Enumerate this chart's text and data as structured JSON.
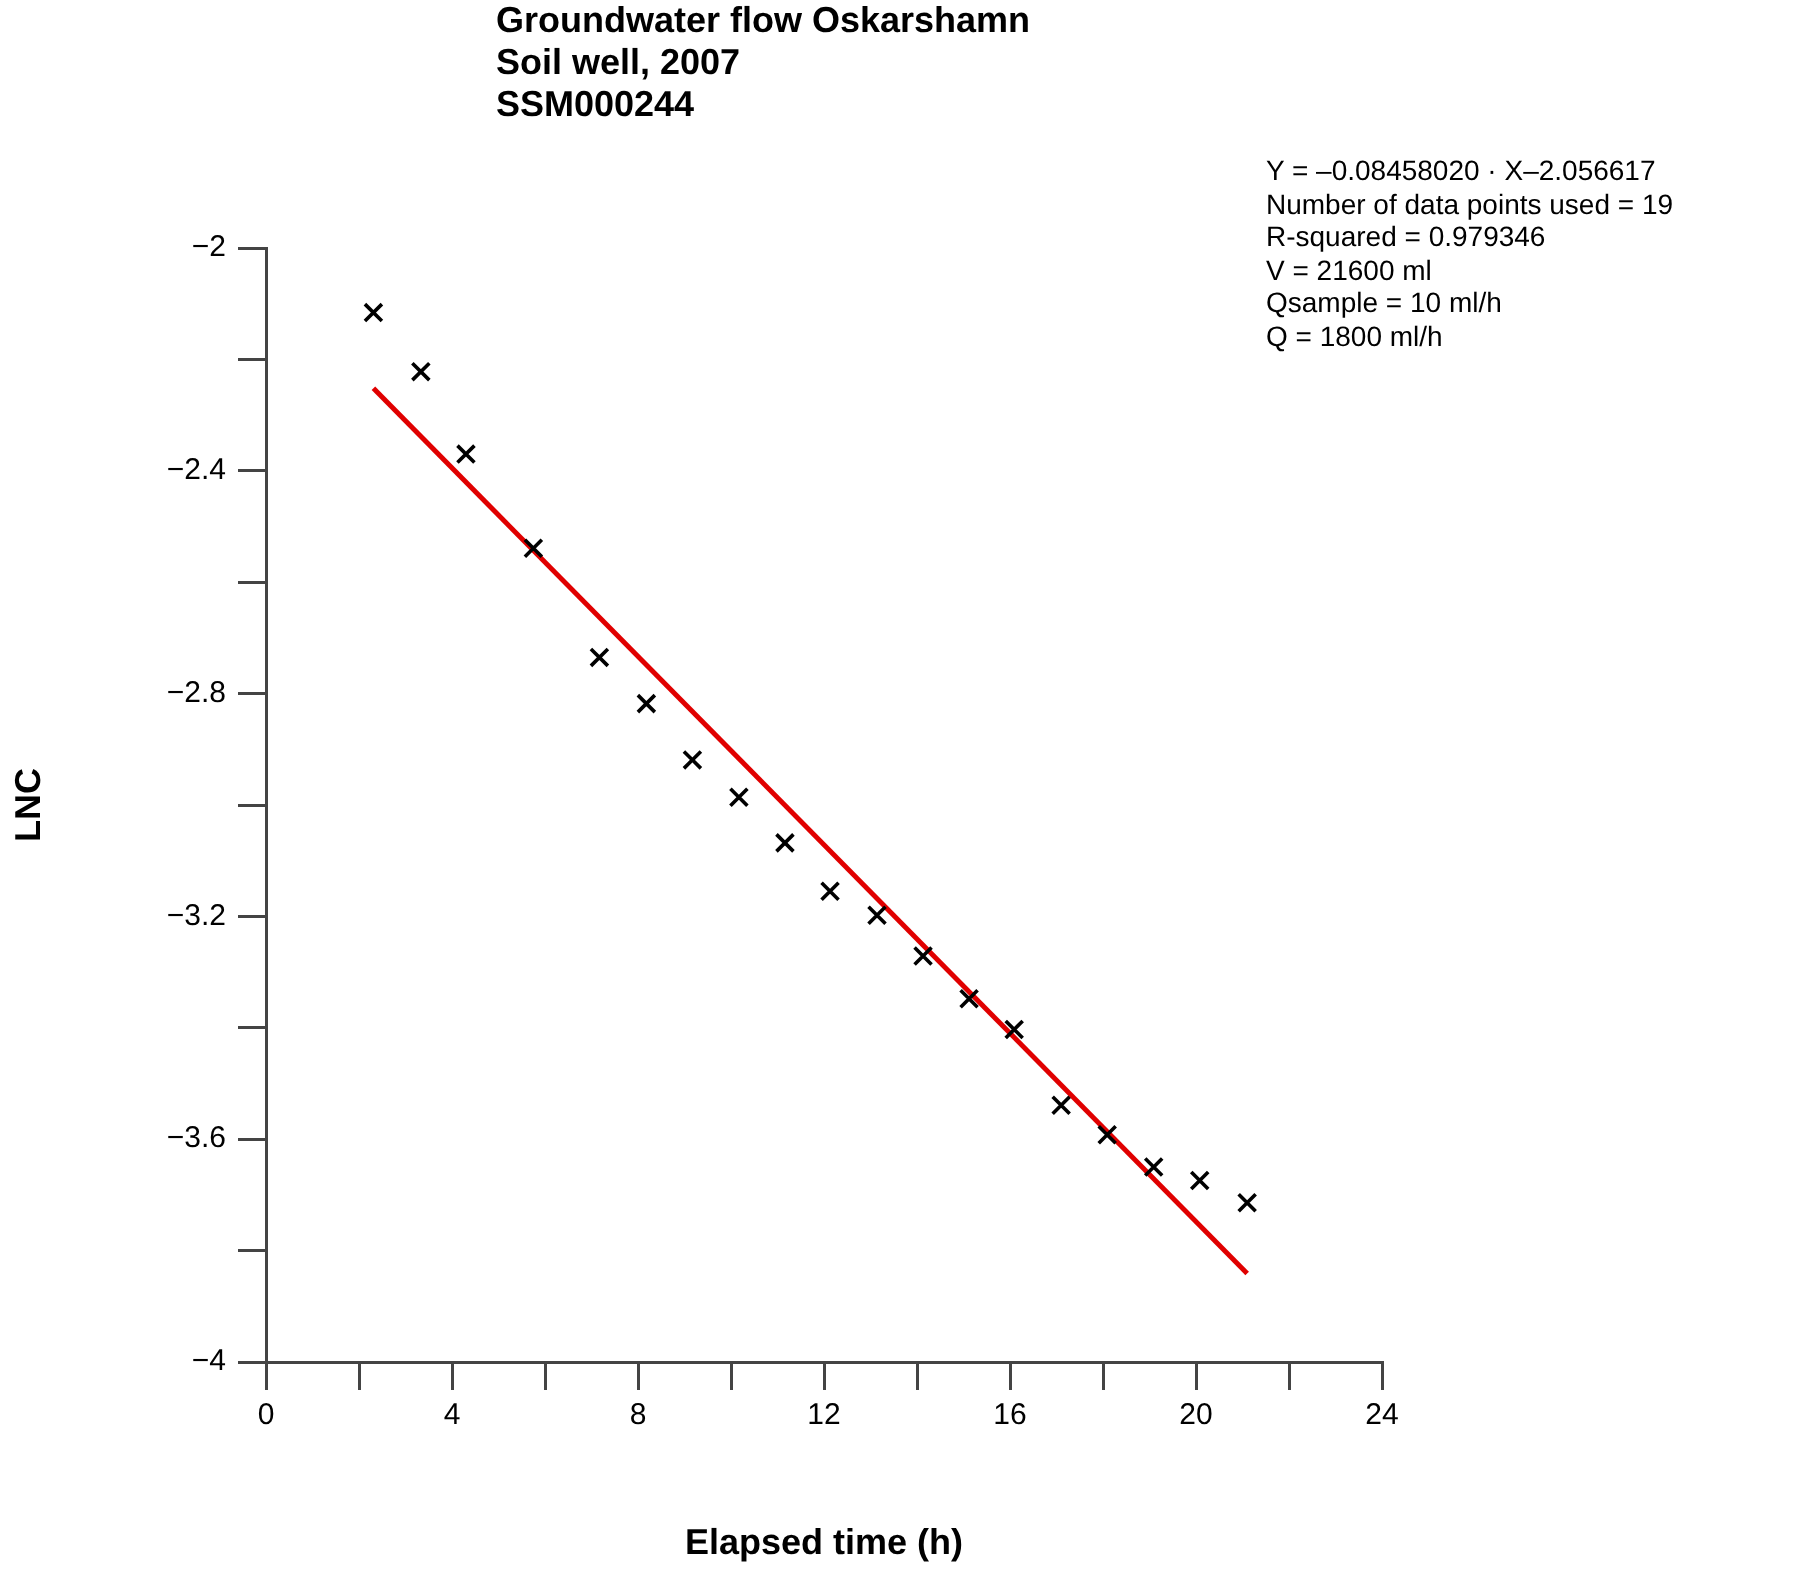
{
  "chart_data": {
    "type": "scatter",
    "title": "Groundwater flow Oskarshamn\nSoil well, 2007\nSSM000244",
    "xlabel": "Elapsed time (h)",
    "ylabel": "LNC",
    "annotations": [
      "Y = –0.08458020 · X–2.056617",
      "Number of data points used = 19",
      "R-squared = 0.979346",
      "V = 21600 ml",
      "Qsample = 10 ml/h",
      "Q = 1800 ml/h"
    ],
    "series": [
      {
        "color": "#000000",
        "marker": "cross",
        "x": [
          2.31,
          3.33,
          4.3,
          5.75,
          7.17,
          8.18,
          9.17,
          10.17,
          11.16,
          12.13,
          13.14,
          14.13,
          15.12,
          16.09,
          17.1,
          18.09,
          19.09,
          20.08,
          21.1
        ],
        "values": [
          -2.116,
          -2.222,
          -2.37,
          -2.539,
          -2.735,
          -2.818,
          -2.919,
          -2.986,
          -3.068,
          -3.155,
          -3.198,
          -3.271,
          -3.348,
          -3.403,
          -3.539,
          -3.592,
          -3.65,
          -3.674,
          -3.714
        ]
      },
      {
        "type": "line",
        "color": "#e00000",
        "marker": "none",
        "x": [
          2.31,
          21.1
        ],
        "values": [
          -2.252,
          -3.841
        ]
      }
    ],
    "xlim": [
      0,
      24
    ],
    "ylim": [
      -4,
      -2
    ],
    "xticks": [
      0,
      {
        "value": 2,
        "label": null
      },
      4,
      {
        "value": 6,
        "label": null
      },
      8,
      {
        "value": 10,
        "label": null
      },
      12,
      {
        "value": 14,
        "label": null
      },
      16,
      {
        "value": 18,
        "label": null
      },
      20,
      {
        "value": 22,
        "label": null
      },
      24
    ],
    "yticks": [
      -2,
      {
        "value": -2.2,
        "label": null
      },
      -2.4,
      {
        "value": -2.6,
        "label": null
      },
      -2.8,
      {
        "value": -3,
        "label": null
      },
      -3.2,
      {
        "value": -3.4,
        "label": null
      },
      -3.6,
      {
        "value": -3.8,
        "label": null
      },
      -4
    ],
    "grid": false,
    "legend": false
  }
}
